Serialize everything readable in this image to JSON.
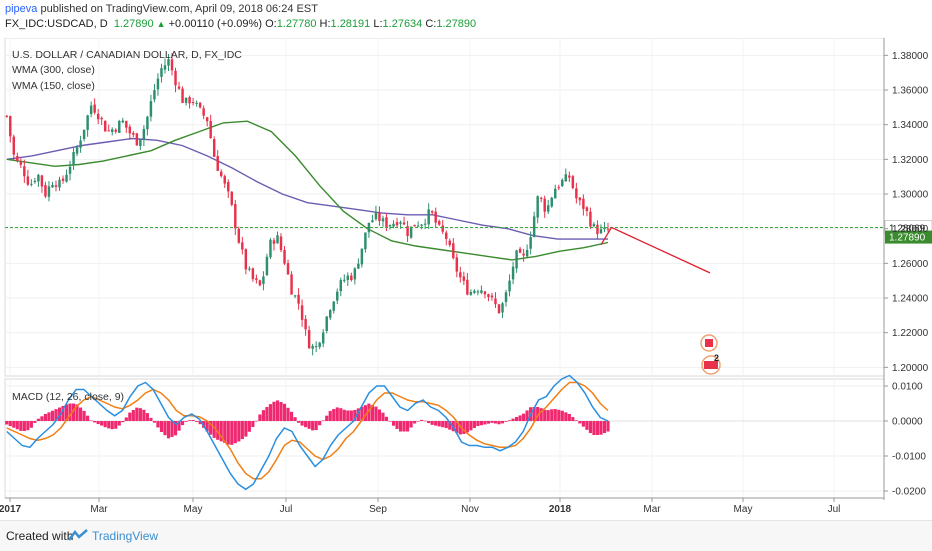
{
  "header": {
    "author": "pipeva",
    "published_text": "published on TradingView.com, April 09, 2018 06:24 EST",
    "symbol": "FX_IDC:USDCAD, D",
    "last": "1.27890",
    "change": "+0.00110 (+0.09%)",
    "open_label": "O:",
    "open": "1.27780",
    "high_label": "H:",
    "high": "1.28191",
    "low_label": "L:",
    "low": "1.27634",
    "close_label": "C:",
    "close": "1.27890"
  },
  "legend": {
    "title": "U.S. DOLLAR / CANADIAN DOLLAR, D, FX_IDC",
    "wma1": "WMA (300, close)",
    "wma2": "WMA (150, close)",
    "macd": "MACD (12, 26, close, 9)"
  },
  "price_labels": {
    "dotted_level": "1.28069",
    "last_price": "1.27890"
  },
  "flags": {
    "us_count": "2"
  },
  "footer": {
    "created_with": "Created with",
    "brand": "TradingView"
  },
  "colors": {
    "up": "#2e8f6e",
    "down": "#e8324c",
    "wma300": "#6b5cb4",
    "wma150": "#3a8a2e",
    "macd_line": "#2a8fe0",
    "signal_line": "#f07f14",
    "hist": "#f0286f",
    "level_line": "#38a83a",
    "projection": "#e11d2b",
    "last_price_bg": "#3a8a2e"
  },
  "chart_data": [
    {
      "type": "candlestick",
      "x_tick_labels": [
        "2017",
        "Mar",
        "May",
        "Jul",
        "Sep",
        "Nov",
        "2018",
        "Mar",
        "May",
        "Jul"
      ],
      "y_tick_labels": [
        "1.38000",
        "1.36000",
        "1.34000",
        "1.32000",
        "1.30000",
        "1.28000",
        "1.26000",
        "1.24000",
        "1.22000",
        "1.20000"
      ],
      "ylim": [
        1.195,
        1.39
      ],
      "close_path": [
        1.345,
        1.32,
        1.315,
        1.305,
        1.312,
        1.3,
        1.308,
        1.305,
        1.315,
        1.325,
        1.338,
        1.352,
        1.345,
        1.336,
        1.338,
        1.342,
        1.335,
        1.33,
        1.34,
        1.358,
        1.372,
        1.377,
        1.364,
        1.352,
        1.355,
        1.348,
        1.343,
        1.32,
        1.308,
        1.296,
        1.275,
        1.258,
        1.25,
        1.246,
        1.27,
        1.276,
        1.262,
        1.244,
        1.236,
        1.215,
        1.21,
        1.222,
        1.236,
        1.246,
        1.252,
        1.253,
        1.268,
        1.284,
        1.287,
        1.283,
        1.283,
        1.286,
        1.278,
        1.283,
        1.284,
        1.29,
        1.28,
        1.275,
        1.26,
        1.25,
        1.243,
        1.246,
        1.245,
        1.238,
        1.232,
        1.245,
        1.265,
        1.262,
        1.278,
        1.3,
        1.29,
        1.303,
        1.307,
        1.31,
        1.296,
        1.292,
        1.281,
        1.278,
        1.279
      ],
      "wma300": [
        1.32,
        1.322,
        1.325,
        1.328,
        1.33,
        1.332,
        1.331,
        1.328,
        1.322,
        1.315,
        1.307,
        1.3,
        1.295,
        1.293,
        1.291,
        1.289,
        1.288,
        1.288,
        1.285,
        1.282,
        1.28,
        1.276,
        1.274,
        1.274,
        1.274
      ],
      "wma150": [
        1.32,
        1.318,
        1.316,
        1.317,
        1.319,
        1.322,
        1.325,
        1.331,
        1.336,
        1.341,
        1.342,
        1.336,
        1.322,
        1.305,
        1.29,
        1.28,
        1.273,
        1.27,
        1.268,
        1.266,
        1.264,
        1.262,
        1.264,
        1.267,
        1.269,
        1.272
      ],
      "level_line": 1.28069,
      "last_price": 1.2789,
      "projection": [
        1.2807,
        1.2545
      ]
    },
    {
      "type": "line",
      "title": "MACD (12, 26, close, 9)",
      "y_tick_labels": [
        "0.0100",
        "0.0000",
        "-0.0100",
        "-0.0200"
      ],
      "ylim": [
        -0.022,
        0.012
      ],
      "macd": [
        -0.003,
        -0.005,
        -0.007,
        -0.0075,
        -0.005,
        -0.003,
        -0.001,
        0.002,
        0.006,
        0.009,
        0.009,
        0.007,
        0.005,
        0.003,
        0.0015,
        0.003,
        0.007,
        0.01,
        0.011,
        0.009,
        0.005,
        0.001,
        -0.001,
        0.001,
        0.002,
        0.0005,
        -0.003,
        -0.007,
        -0.011,
        -0.015,
        -0.018,
        -0.0195,
        -0.018,
        -0.014,
        -0.01,
        -0.005,
        -0.002,
        -0.003,
        -0.007,
        -0.01,
        -0.013,
        -0.011,
        -0.007,
        -0.004,
        -0.002,
        0.0,
        0.004,
        0.008,
        0.01,
        0.01,
        0.007,
        0.004,
        0.003,
        0.005,
        0.006,
        0.004,
        0.003,
        0.001,
        -0.002,
        -0.006,
        -0.007,
        -0.007,
        -0.0075,
        -0.0075,
        -0.0085,
        -0.0075,
        -0.006,
        -0.003,
        0.002,
        0.006,
        0.007,
        0.01,
        0.012,
        0.013,
        0.011,
        0.008,
        0.004,
        0.001,
        0.0
      ],
      "signal": [
        -0.002,
        -0.003,
        -0.004,
        -0.005,
        -0.0055,
        -0.005,
        -0.004,
        -0.002,
        0.001,
        0.004,
        0.006,
        0.007,
        0.006,
        0.005,
        0.004,
        0.0035,
        0.0045,
        0.006,
        0.008,
        0.009,
        0.008,
        0.006,
        0.003,
        0.0015,
        0.0015,
        0.0012,
        0.0,
        -0.002,
        -0.005,
        -0.008,
        -0.012,
        -0.015,
        -0.0165,
        -0.0165,
        -0.0145,
        -0.011,
        -0.007,
        -0.0055,
        -0.006,
        -0.008,
        -0.01,
        -0.011,
        -0.01,
        -0.008,
        -0.005,
        -0.003,
        0.0,
        0.003,
        0.006,
        0.008,
        0.008,
        0.007,
        0.006,
        0.0055,
        0.0055,
        0.005,
        0.0045,
        0.003,
        0.001,
        -0.002,
        -0.004,
        -0.0055,
        -0.0065,
        -0.007,
        -0.0075,
        -0.0075,
        -0.007,
        -0.005,
        -0.002,
        0.002,
        0.004,
        0.0065,
        0.009,
        0.011,
        0.011,
        0.01,
        0.008,
        0.005,
        0.003
      ]
    }
  ]
}
